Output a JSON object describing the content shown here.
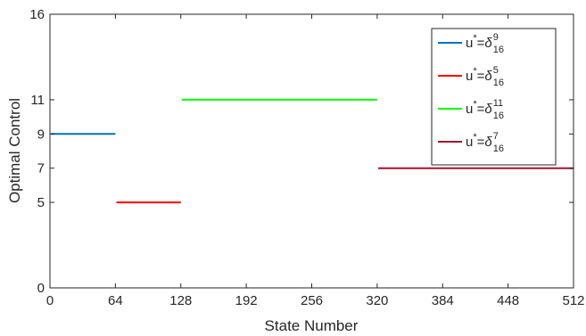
{
  "chart_data": {
    "type": "line",
    "title": "",
    "xlabel": "State Number",
    "ylabel": "Optimal Control",
    "xlim": [
      0,
      512
    ],
    "ylim": [
      0,
      16
    ],
    "xticks": [
      0,
      64,
      128,
      192,
      256,
      320,
      384,
      448,
      512
    ],
    "yticks": [
      0,
      5,
      7,
      9,
      11,
      16
    ],
    "grid": false,
    "legend_position": "top-right",
    "series": [
      {
        "label_base": "u",
        "label_star": "*",
        "label_eq": "=",
        "label_delta": "δ",
        "label_sub": "16",
        "label_sup": "9",
        "color": "#0072BD",
        "x": [
          1,
          64
        ],
        "y": [
          9,
          9
        ]
      },
      {
        "label_base": "u",
        "label_star": "*",
        "label_eq": "=",
        "label_delta": "δ",
        "label_sub": "16",
        "label_sup": "5",
        "color": "#FF0000",
        "x": [
          65,
          128
        ],
        "y": [
          5,
          5
        ]
      },
      {
        "label_base": "u",
        "label_star": "*",
        "label_eq": "=",
        "label_delta": "δ",
        "label_sub": "16",
        "label_sup": "11",
        "color": "#00FF00",
        "x": [
          129,
          320
        ],
        "y": [
          11,
          11
        ]
      },
      {
        "label_base": "u",
        "label_star": "*",
        "label_eq": "=",
        "label_delta": "δ",
        "label_sub": "16",
        "label_sup": "7",
        "color": "#A2142F",
        "x": [
          321,
          512
        ],
        "y": [
          7,
          7
        ]
      }
    ]
  }
}
